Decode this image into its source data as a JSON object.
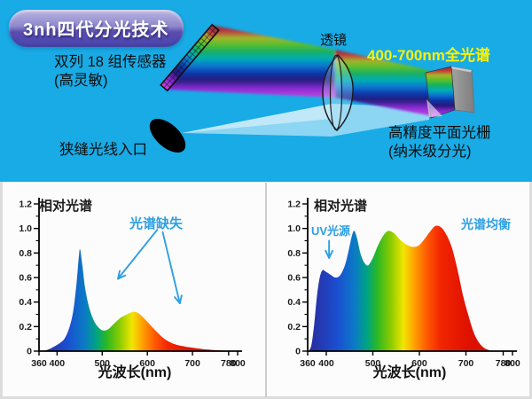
{
  "app": {
    "badge": "3nh四代分光技术"
  },
  "diagram": {
    "background_color": "#18abe6",
    "sensor_label_line1": "双列 18 组传感器",
    "sensor_label_line2": "(高灵敏)",
    "slit_label": "狭缝光线入口",
    "lens_label": "透镜",
    "full_spectrum_label": "400-700nm全光谱",
    "full_spectrum_color": "#fff100",
    "grating_label_line1": "高精度平面光栅",
    "grating_label_line2": "(纳米级分光)",
    "beam_gradient": [
      [
        0.0,
        "#8c2838"
      ],
      [
        0.08,
        "#c23a3a"
      ],
      [
        0.17,
        "#a8b428"
      ],
      [
        0.26,
        "#5cc028"
      ],
      [
        0.36,
        "#18b060"
      ],
      [
        0.46,
        "#00aeb4"
      ],
      [
        0.56,
        "#0a74d0"
      ],
      [
        0.66,
        "#0d35a8"
      ],
      [
        0.76,
        "#27187a"
      ],
      [
        0.87,
        "#8a28d2"
      ],
      [
        1.0,
        "#cc42e0"
      ]
    ]
  },
  "bottom": {
    "divider_color": "#cccccc"
  },
  "spectrum_gradient": [
    [
      360,
      "#2a2a9c"
    ],
    [
      425,
      "#1b4fd2"
    ],
    [
      462,
      "#0a7cc4"
    ],
    [
      488,
      "#00a480"
    ],
    [
      510,
      "#2db822"
    ],
    [
      540,
      "#8fcc00"
    ],
    [
      566,
      "#f2e600"
    ],
    [
      590,
      "#ff9e00"
    ],
    [
      616,
      "#ff5a00"
    ],
    [
      645,
      "#f22600"
    ],
    [
      700,
      "#e01200"
    ],
    [
      800,
      "#cc0a00"
    ]
  ],
  "chart_data": [
    {
      "type": "area",
      "title": "相对光谱",
      "xlabel": "光波长(nm)",
      "xlim": [
        360,
        800
      ],
      "ylim": [
        0,
        1.2
      ],
      "x_ticks": [
        360,
        400,
        500,
        600,
        700,
        780,
        800
      ],
      "y_ticks": [
        0,
        0.2,
        0.4,
        0.6,
        0.8,
        1.0,
        1.2
      ],
      "y_tick_labels": [
        "0",
        "0.2",
        "0.4",
        "0.6",
        "0.8",
        "1.0",
        "1.2"
      ],
      "points": [
        [
          360,
          0
        ],
        [
          378,
          0.01
        ],
        [
          395,
          0.04
        ],
        [
          408,
          0.07
        ],
        [
          418,
          0.11
        ],
        [
          428,
          0.2
        ],
        [
          436,
          0.33
        ],
        [
          443,
          0.55
        ],
        [
          448,
          0.76
        ],
        [
          451,
          0.83
        ],
        [
          456,
          0.7
        ],
        [
          462,
          0.52
        ],
        [
          470,
          0.37
        ],
        [
          480,
          0.26
        ],
        [
          490,
          0.2
        ],
        [
          500,
          0.17
        ],
        [
          512,
          0.175
        ],
        [
          525,
          0.22
        ],
        [
          540,
          0.27
        ],
        [
          555,
          0.3
        ],
        [
          568,
          0.32
        ],
        [
          580,
          0.31
        ],
        [
          592,
          0.27
        ],
        [
          605,
          0.22
        ],
        [
          620,
          0.16
        ],
        [
          638,
          0.1
        ],
        [
          658,
          0.06
        ],
        [
          680,
          0.04
        ],
        [
          705,
          0.025
        ],
        [
          735,
          0.012
        ],
        [
          765,
          0.005
        ],
        [
          800,
          0
        ]
      ],
      "annotations": [
        {
          "text": "光谱缺失",
          "color": "#2d9fe3",
          "arrows": [
            {
              "from": [
                622,
                0.99
              ],
              "to": [
                535,
                0.59
              ]
            },
            {
              "from": [
                634,
                0.97
              ],
              "to": [
                672,
                0.39
              ]
            }
          ]
        }
      ]
    },
    {
      "type": "area",
      "title": "相对光谱",
      "xlabel": "光波长(nm)",
      "xlim": [
        360,
        800
      ],
      "ylim": [
        0,
        1.2
      ],
      "x_ticks": [
        360,
        400,
        500,
        600,
        700,
        780,
        800
      ],
      "y_ticks": [
        0,
        0.2,
        0.4,
        0.6,
        0.8,
        1.0,
        1.2
      ],
      "y_tick_labels": [
        "0",
        "0.2",
        "0.4",
        "0.6",
        "0.8",
        "1.0",
        "1.2"
      ],
      "points": [
        [
          362,
          0
        ],
        [
          368,
          0.05
        ],
        [
          374,
          0.22
        ],
        [
          380,
          0.45
        ],
        [
          386,
          0.6
        ],
        [
          392,
          0.66
        ],
        [
          400,
          0.645
        ],
        [
          410,
          0.62
        ],
        [
          420,
          0.6
        ],
        [
          430,
          0.62
        ],
        [
          440,
          0.7
        ],
        [
          448,
          0.82
        ],
        [
          455,
          0.94
        ],
        [
          460,
          0.98
        ],
        [
          466,
          0.92
        ],
        [
          474,
          0.79
        ],
        [
          482,
          0.72
        ],
        [
          490,
          0.7
        ],
        [
          500,
          0.76
        ],
        [
          512,
          0.87
        ],
        [
          524,
          0.95
        ],
        [
          534,
          0.98
        ],
        [
          546,
          0.96
        ],
        [
          558,
          0.91
        ],
        [
          572,
          0.87
        ],
        [
          585,
          0.85
        ],
        [
          598,
          0.86
        ],
        [
          610,
          0.91
        ],
        [
          622,
          0.97
        ],
        [
          634,
          1.02
        ],
        [
          646,
          1.01
        ],
        [
          658,
          0.95
        ],
        [
          670,
          0.84
        ],
        [
          682,
          0.66
        ],
        [
          694,
          0.45
        ],
        [
          706,
          0.28
        ],
        [
          718,
          0.14
        ],
        [
          732,
          0.05
        ],
        [
          748,
          0.01
        ],
        [
          765,
          0
        ],
        [
          800,
          0
        ]
      ],
      "annotations": [
        {
          "text": "UV光源",
          "color": "#2d9fe3",
          "arrows": [
            {
              "from": [
                406,
                0.9
              ],
              "to": [
                406,
                0.76
              ]
            }
          ]
        },
        {
          "text": "光谱均衡",
          "color": "#2d9fe3",
          "arrows": []
        }
      ]
    }
  ]
}
